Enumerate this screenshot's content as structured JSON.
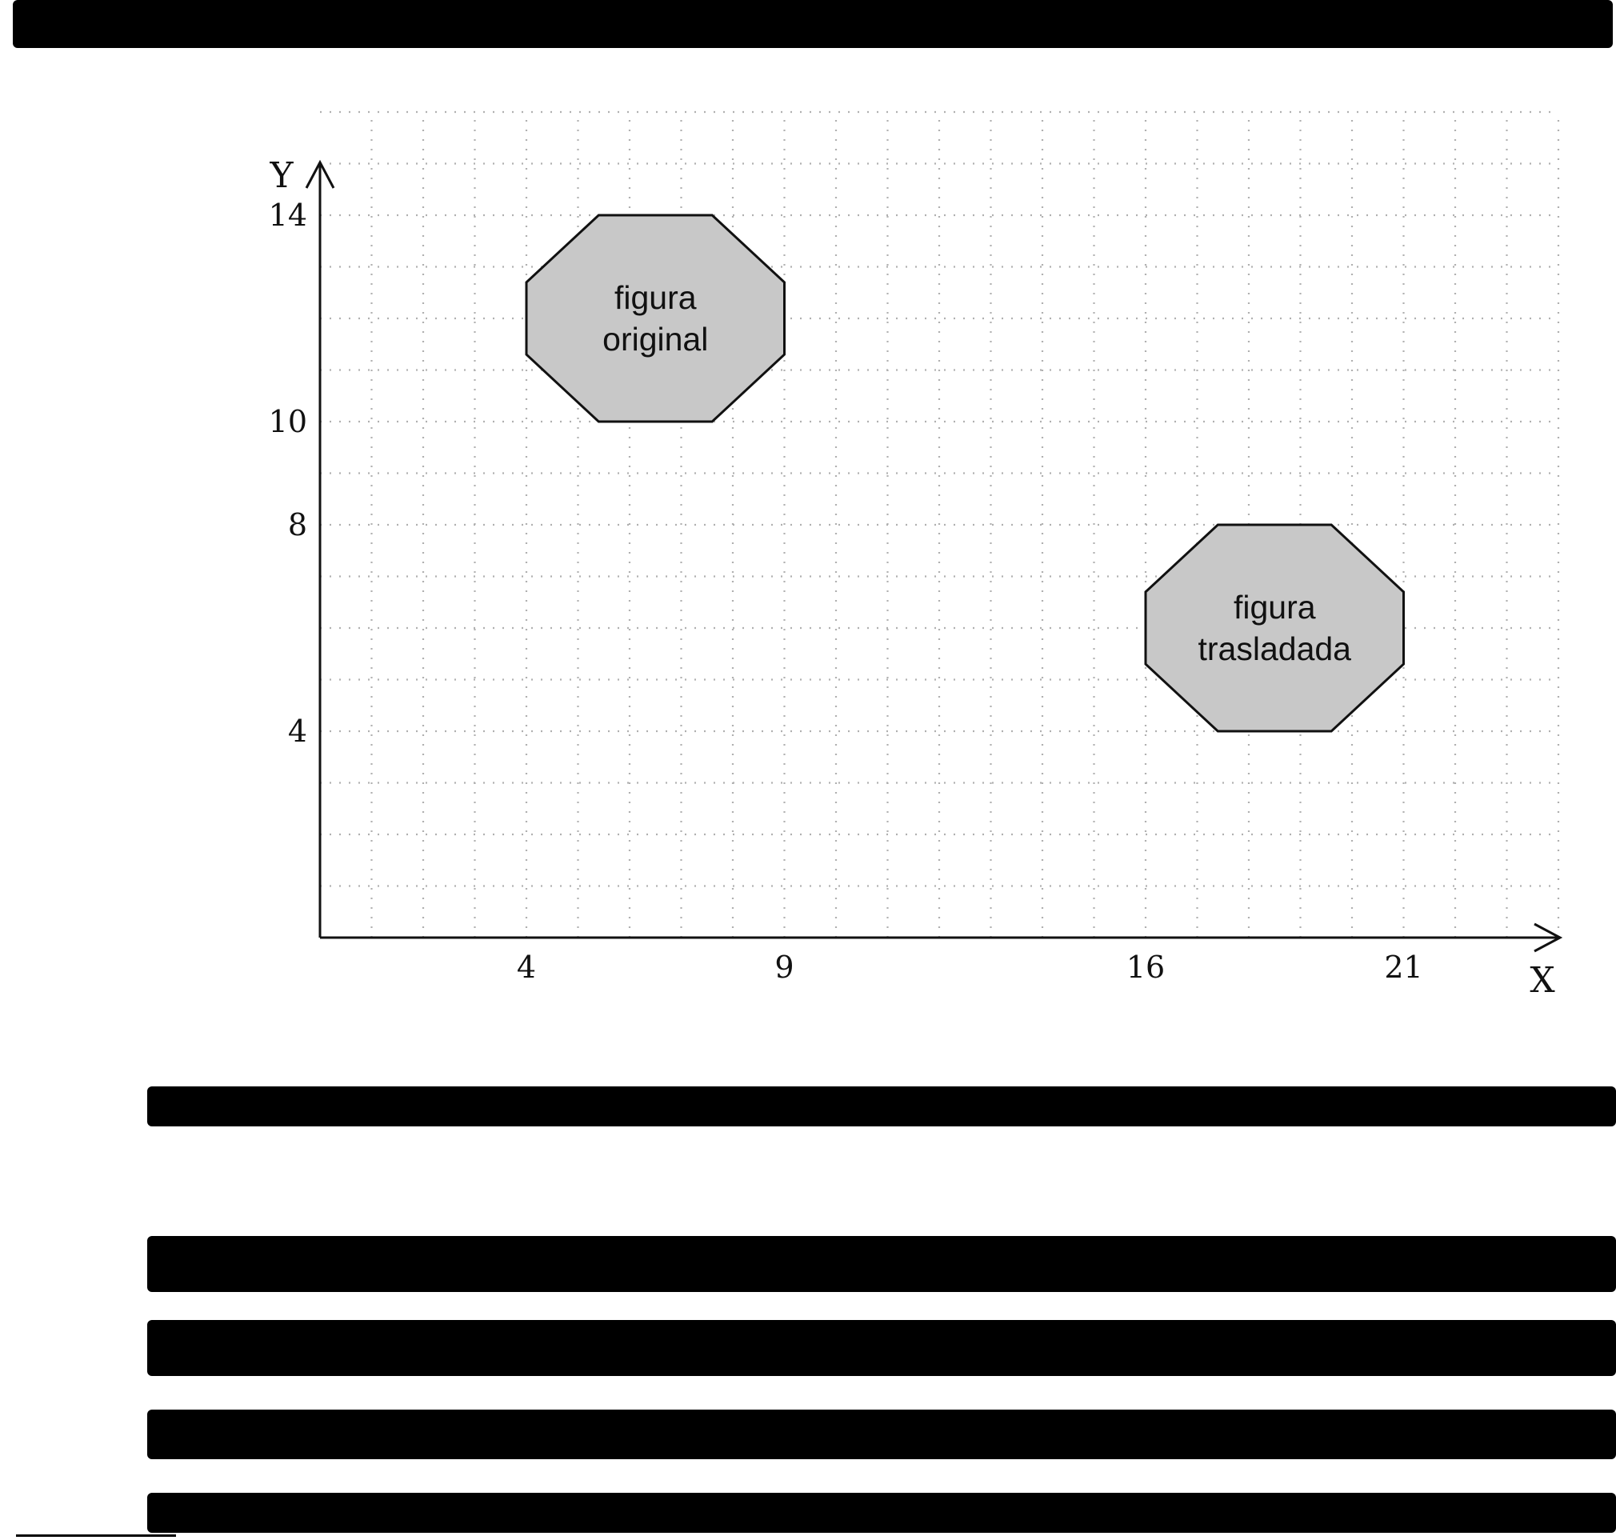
{
  "diagram": {
    "x_axis_label": "X",
    "y_axis_label": "Y",
    "x_ticks": [
      "4",
      "9",
      "16",
      "21"
    ],
    "y_ticks": [
      "4",
      "8",
      "10",
      "14"
    ],
    "grid": true,
    "shapes": [
      {
        "id": "original",
        "label_lines": [
          "figura",
          "original"
        ],
        "fill": "#c8c8c8",
        "vertices": [
          [
            4,
            11.3
          ],
          [
            4,
            12.7
          ],
          [
            5.4,
            14
          ],
          [
            7.6,
            14
          ],
          [
            9,
            12.7
          ],
          [
            9,
            11.3
          ],
          [
            7.6,
            10
          ],
          [
            5.4,
            10
          ]
        ]
      },
      {
        "id": "translated",
        "label_lines": [
          "figura",
          "trasladada"
        ],
        "fill": "#c8c8c8",
        "vertices": [
          [
            16,
            5.3
          ],
          [
            16,
            6.7
          ],
          [
            17.4,
            8
          ],
          [
            19.6,
            8
          ],
          [
            21,
            6.7
          ],
          [
            21,
            5.3
          ],
          [
            19.6,
            4
          ],
          [
            17.4,
            4
          ]
        ]
      }
    ]
  }
}
